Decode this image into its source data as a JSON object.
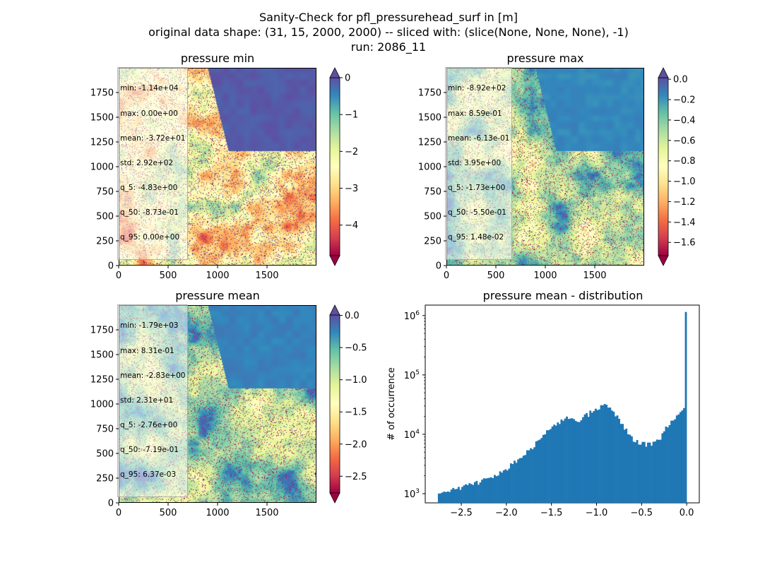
{
  "figure": {
    "title_lines": [
      "Sanity-Check for pfl_pressurehead_surf in [m]",
      "original data shape: (31, 15, 2000, 2000) -- sliced with: (slice(None, None, None), -1)",
      "run: 2086_11"
    ]
  },
  "chart_data": [
    {
      "type": "heatmap",
      "title": "pressure min",
      "colormap": "Spectral",
      "colorbar_extend": "both",
      "clim": [
        -4.83,
        0.0
      ],
      "colorbar_ticks": [
        0,
        -1,
        -2,
        -3,
        -4
      ],
      "colorbar_tick_labels": [
        "0",
        "−1",
        "−2",
        "−3",
        "−4"
      ],
      "x_ticks": [
        0,
        500,
        1000,
        1500
      ],
      "y_ticks": [
        0,
        250,
        500,
        750,
        1000,
        1250,
        1500,
        1750
      ],
      "xlim": [
        0,
        2000
      ],
      "ylim": [
        0,
        2000
      ],
      "stats": [
        "min: -1.14e+04",
        "max: 0.00e+00",
        "mean: -3.72e+01",
        "std: 2.92e+02",
        "q_5: -4.83e+00",
        "q_50: -8.73e-01",
        "q_95: 0.00e+00"
      ]
    },
    {
      "type": "heatmap",
      "title": "pressure max",
      "colormap": "Spectral",
      "colorbar_extend": "both",
      "clim": [
        -1.73,
        0.0148
      ],
      "colorbar_ticks": [
        0.0,
        -0.2,
        -0.4,
        -0.6,
        -0.8,
        -1.0,
        -1.2,
        -1.4,
        -1.6
      ],
      "colorbar_tick_labels": [
        "0.0",
        "−0.2",
        "−0.4",
        "−0.6",
        "−0.8",
        "−1.0",
        "−1.2",
        "−1.4",
        "−1.6"
      ],
      "x_ticks": [
        0,
        500,
        1000,
        1500
      ],
      "y_ticks": [
        0,
        250,
        500,
        750,
        1000,
        1250,
        1500,
        1750
      ],
      "xlim": [
        0,
        2000
      ],
      "ylim": [
        0,
        2000
      ],
      "stats": [
        "min: -8.92e+02",
        "max: 8.59e-01",
        "mean: -6.13e-01",
        "std: 3.95e+00",
        "q_5: -1.73e+00",
        "q_50: -5.50e-01",
        "q_95: 1.48e-02"
      ]
    },
    {
      "type": "heatmap",
      "title": "pressure mean",
      "colormap": "Spectral",
      "colorbar_extend": "both",
      "clim": [
        -2.76,
        0.00637
      ],
      "colorbar_ticks": [
        0.0,
        -0.5,
        -1.0,
        -1.5,
        -2.0,
        -2.5
      ],
      "colorbar_tick_labels": [
        "0.0",
        "−0.5",
        "−1.0",
        "−1.5",
        "−2.0",
        "−2.5"
      ],
      "x_ticks": [
        0,
        500,
        1000,
        1500
      ],
      "y_ticks": [
        0,
        250,
        500,
        750,
        1000,
        1250,
        1500,
        1750
      ],
      "xlim": [
        0,
        2000
      ],
      "ylim": [
        0,
        2000
      ],
      "stats": [
        "min: -1.79e+03",
        "max: 8.31e-01",
        "mean: -2.83e+00",
        "std: 2.31e+01",
        "q_5: -2.76e+00",
        "q_50: -7.19e-01",
        "q_95: 6.37e-03"
      ]
    },
    {
      "type": "bar",
      "title": "pressure mean - distribution",
      "ylabel": "# of occurrence",
      "xlabel": "",
      "yscale": "log",
      "bar_color": "#1f77b4",
      "xlim": [
        -2.9,
        0.14
      ],
      "ylim": [
        700,
        1500000
      ],
      "x_ticks": [
        -2.5,
        -2.0,
        -1.5,
        -1.0,
        -0.5,
        0.0
      ],
      "x_tick_labels": [
        "−2.5",
        "−2.0",
        "−1.5",
        "−1.0",
        "−0.5",
        "0.0"
      ],
      "y_ticks": [
        1000,
        10000,
        100000,
        1000000
      ],
      "bin_range": [
        -2.76,
        0.0
      ],
      "bin_count": 138,
      "profile_x": [
        -2.76,
        -2.6,
        -2.4,
        -2.2,
        -2.0,
        -1.8,
        -1.6,
        -1.5,
        -1.3,
        -1.2,
        -1.05,
        -0.95,
        -0.9,
        -0.8,
        -0.7,
        -0.6,
        -0.5,
        -0.4,
        -0.3,
        -0.2,
        -0.1,
        -0.05,
        -0.02,
        -0.01,
        0.0
      ],
      "profile_y": [
        950,
        1150,
        1400,
        1800,
        2600,
        4500,
        9000,
        14000,
        20000,
        17000,
        24000,
        30000,
        31000,
        23000,
        13500,
        8500,
        7000,
        6700,
        8500,
        15000,
        20000,
        23000,
        29000,
        30000,
        1150000
      ]
    }
  ]
}
